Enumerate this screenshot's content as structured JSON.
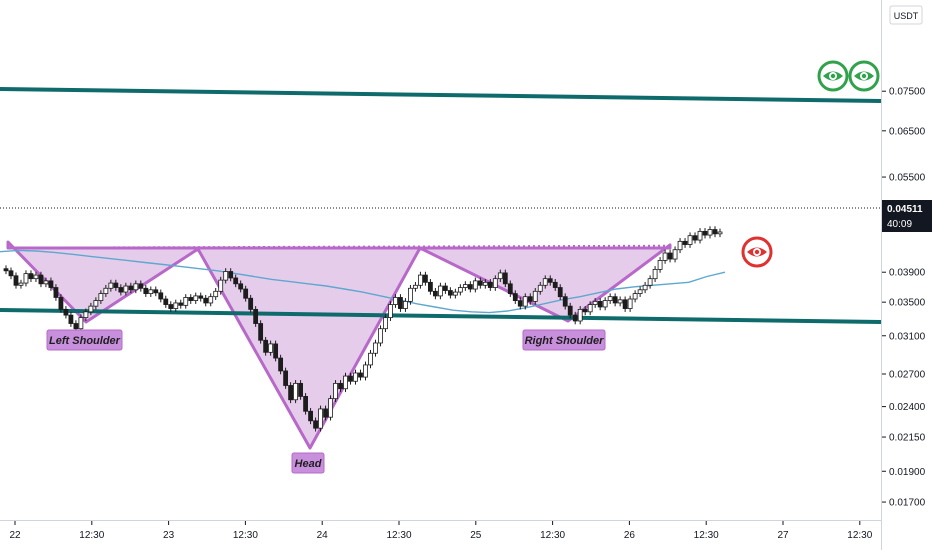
{
  "chart_data": {
    "type": "candlestick",
    "currency": "USDT",
    "y_scale": "log",
    "ylim": [
      0.0164,
      0.1013
    ],
    "y_ticks": [
      "0.07500",
      "0.06500",
      "0.05500",
      "0.03900",
      "0.03500",
      "0.03100",
      "0.02700",
      "0.02400",
      "0.02150",
      "0.01900",
      "0.01700"
    ],
    "x_ticks": [
      "22",
      "12:30",
      "23",
      "12:30",
      "24",
      "12:30",
      "25",
      "12:30",
      "26",
      "12:30",
      "27",
      "12:30"
    ],
    "last_price": "0.04511",
    "countdown": "40:09",
    "annotations": [
      "Left Shoulder",
      "Head",
      "Right Shoulder"
    ],
    "closes": [
      0.0392,
      0.0385,
      0.0372,
      0.0375,
      0.0388,
      0.0381,
      0.0386,
      0.0374,
      0.0378,
      0.0369,
      0.0356,
      0.0341,
      0.0334,
      0.0324,
      0.0318,
      0.0331,
      0.0338,
      0.0345,
      0.0352,
      0.0361,
      0.0368,
      0.0375,
      0.0369,
      0.0363,
      0.0371,
      0.0366,
      0.0374,
      0.0368,
      0.0361,
      0.0366,
      0.0362,
      0.0354,
      0.0347,
      0.0342,
      0.0349,
      0.0346,
      0.0356,
      0.0352,
      0.0358,
      0.0355,
      0.0349,
      0.0357,
      0.0364,
      0.0379,
      0.0391,
      0.0382,
      0.0374,
      0.0367,
      0.0355,
      0.0341,
      0.0324,
      0.0305,
      0.0292,
      0.0301,
      0.0286,
      0.0273,
      0.0259,
      0.0246,
      0.0261,
      0.0249,
      0.0236,
      0.0228,
      0.0222,
      0.0238,
      0.0231,
      0.0247,
      0.0261,
      0.0256,
      0.0268,
      0.0263,
      0.0271,
      0.0267,
      0.0279,
      0.0291,
      0.0302,
      0.0318,
      0.0331,
      0.0347,
      0.0356,
      0.0342,
      0.0351,
      0.0368,
      0.0372,
      0.0386,
      0.0376,
      0.0364,
      0.0358,
      0.0371,
      0.0365,
      0.0359,
      0.0363,
      0.0369,
      0.0373,
      0.0367,
      0.0378,
      0.0372,
      0.0376,
      0.0369,
      0.0381,
      0.0389,
      0.0374,
      0.0361,
      0.0352,
      0.0345,
      0.0357,
      0.0351,
      0.0364,
      0.0372,
      0.0381,
      0.0376,
      0.0369,
      0.0357,
      0.0345,
      0.0334,
      0.0327,
      0.0341,
      0.0338,
      0.0347,
      0.0351,
      0.0344,
      0.0352,
      0.0357,
      0.0349,
      0.0353,
      0.0342,
      0.0354,
      0.0361,
      0.0366,
      0.0372,
      0.0381,
      0.0394,
      0.0407,
      0.0418,
      0.0409,
      0.0423,
      0.0436,
      0.0431,
      0.0445,
      0.0438,
      0.0452,
      0.0446,
      0.0455,
      0.0448,
      0.0451
    ],
    "opens": [
      0.0395,
      0.0392,
      0.0385,
      0.0372,
      0.0375,
      0.0388,
      0.0381,
      0.0386,
      0.0374,
      0.0378,
      0.0369,
      0.0356,
      0.0341,
      0.0334,
      0.0324,
      0.0318,
      0.0331,
      0.0338,
      0.0345,
      0.0352,
      0.0361,
      0.0368,
      0.0375,
      0.0369,
      0.0363,
      0.0371,
      0.0366,
      0.0374,
      0.0368,
      0.0361,
      0.0366,
      0.0362,
      0.0354,
      0.0347,
      0.0342,
      0.0349,
      0.0346,
      0.0356,
      0.0352,
      0.0358,
      0.0355,
      0.0349,
      0.0357,
      0.0364,
      0.0379,
      0.0391,
      0.0382,
      0.0374,
      0.0367,
      0.0355,
      0.0341,
      0.0324,
      0.0305,
      0.0292,
      0.0301,
      0.0286,
      0.0273,
      0.0259,
      0.0246,
      0.0261,
      0.0249,
      0.0236,
      0.0228,
      0.0222,
      0.0238,
      0.0231,
      0.0247,
      0.0261,
      0.0256,
      0.0268,
      0.0263,
      0.0271,
      0.0267,
      0.0279,
      0.0291,
      0.0302,
      0.0318,
      0.0331,
      0.0347,
      0.0356,
      0.0342,
      0.0351,
      0.0368,
      0.0372,
      0.0386,
      0.0376,
      0.0364,
      0.0358,
      0.0371,
      0.0365,
      0.0359,
      0.0363,
      0.0369,
      0.0373,
      0.0367,
      0.0378,
      0.0372,
      0.0376,
      0.0369,
      0.0381,
      0.0389,
      0.0374,
      0.0361,
      0.0352,
      0.0345,
      0.0357,
      0.0351,
      0.0364,
      0.0372,
      0.0381,
      0.0376,
      0.0369,
      0.0357,
      0.0345,
      0.0334,
      0.0327,
      0.0341,
      0.0338,
      0.0347,
      0.0351,
      0.0344,
      0.0352,
      0.0357,
      0.0349,
      0.0353,
      0.0342,
      0.0354,
      0.0361,
      0.0366,
      0.0372,
      0.0381,
      0.0394,
      0.0407,
      0.0418,
      0.0409,
      0.0423,
      0.0436,
      0.0431,
      0.0445,
      0.0438,
      0.0452,
      0.0446,
      0.0455,
      0.0448
    ],
    "ma": [
      0.042,
      0.0422,
      0.0421,
      0.0419,
      0.0416,
      0.0413,
      0.041,
      0.0407,
      0.0404,
      0.0401,
      0.0398,
      0.0395,
      0.0392,
      0.0388,
      0.0384,
      0.038,
      0.0377,
      0.0374,
      0.0371,
      0.0367,
      0.0363,
      0.0358,
      0.0353,
      0.0348,
      0.0344,
      0.034,
      0.0338,
      0.0337,
      0.0339,
      0.0343,
      0.0348,
      0.0353,
      0.0357,
      0.0362,
      0.0367,
      0.037,
      0.0372,
      0.0374,
      0.0376,
      0.0384,
      0.039
    ],
    "colors": {
      "channel": "#0f6b6b",
      "ma": "#5ea8cf",
      "pattern_fill": "#c78fd3",
      "pattern_stroke": "#b768c8",
      "label_bg": "#c88fdc",
      "bull_candle": "#ffffff",
      "bear_candle": "#1c1c1c",
      "price_tag": "#131722",
      "eye_green": "#31a24c",
      "eye_red": "#e03131"
    },
    "icons": [
      "eye-bullish-icon",
      "eye-bullish-icon",
      "eye-bearish-icon"
    ]
  }
}
